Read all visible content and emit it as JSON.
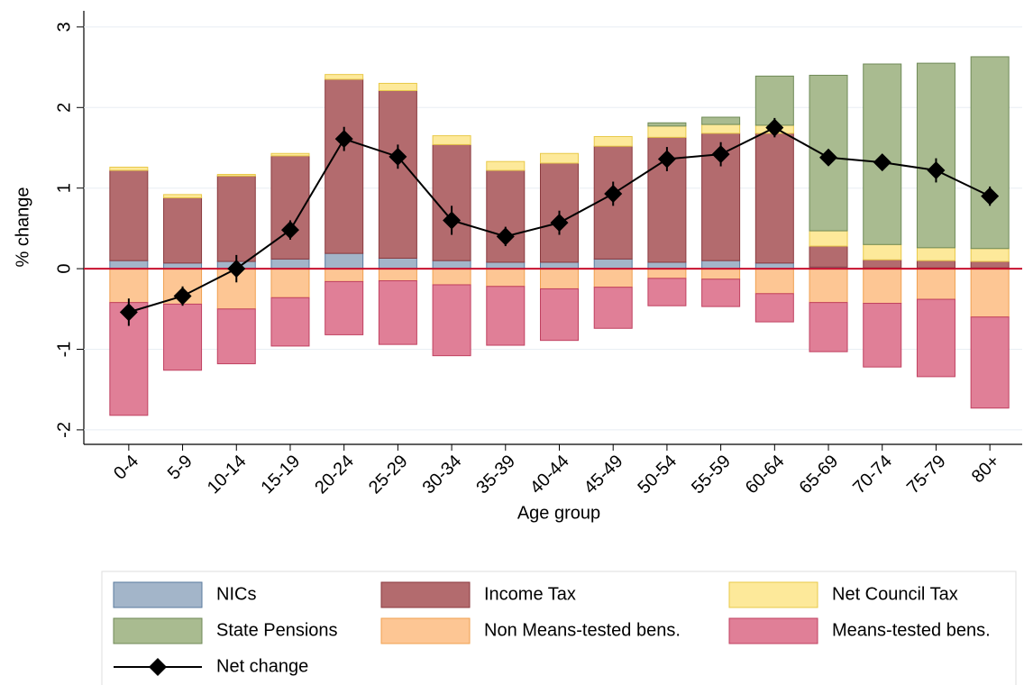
{
  "chart_data": {
    "type": "bar",
    "stacked": true,
    "xlabel": "Age group",
    "ylabel": "% change",
    "categories": [
      "0-4",
      "5-9",
      "10-14",
      "15-19",
      "20-24",
      "25-29",
      "30-34",
      "35-39",
      "40-44",
      "45-49",
      "50-54",
      "55-59",
      "60-64",
      "65-69",
      "70-74",
      "75-79",
      "80+"
    ],
    "ylim": [
      -2.18,
      3.2
    ],
    "yticks": [
      -2,
      -1,
      0,
      1,
      2,
      3
    ],
    "zero_line_color": "#c8102e",
    "series": [
      {
        "name": "NICs",
        "color": "#a3b5c9",
        "edgecolor": "#5a7a9e",
        "values": [
          0.1,
          0.07,
          0.09,
          0.12,
          0.19,
          0.13,
          0.1,
          0.08,
          0.08,
          0.12,
          0.08,
          0.1,
          0.07,
          0.02,
          0.01,
          0.01,
          0.01
        ]
      },
      {
        "name": "Income Tax",
        "color": "#b36b6e",
        "edgecolor": "#8b3a3e",
        "values": [
          1.12,
          0.81,
          1.06,
          1.28,
          2.16,
          2.08,
          1.44,
          1.14,
          1.23,
          1.4,
          1.55,
          1.58,
          1.61,
          0.26,
          0.1,
          0.09,
          0.08
        ]
      },
      {
        "name": "Net Council Tax",
        "color": "#fde99a",
        "edgecolor": "#e8c94a",
        "values": [
          0.04,
          0.04,
          0.02,
          0.03,
          0.06,
          0.09,
          0.11,
          0.11,
          0.12,
          0.12,
          0.14,
          0.11,
          0.1,
          0.19,
          0.19,
          0.16,
          0.16
        ]
      },
      {
        "name": "State Pensions",
        "color": "#a9bb90",
        "edgecolor": "#6f8a57",
        "values": [
          0,
          0,
          0,
          0,
          0,
          0,
          0,
          0,
          0,
          0,
          0.04,
          0.09,
          0.61,
          1.93,
          2.24,
          2.29,
          2.38
        ]
      },
      {
        "name": "Non Means-tested bens.",
        "color": "#fdc694",
        "edgecolor": "#f0a050",
        "values": [
          -0.42,
          -0.44,
          -0.5,
          -0.36,
          -0.16,
          -0.15,
          -0.2,
          -0.22,
          -0.25,
          -0.23,
          -0.12,
          -0.13,
          -0.31,
          -0.42,
          -0.43,
          -0.38,
          -0.6
        ]
      },
      {
        "name": "Means-tested bens.",
        "color": "#e07f97",
        "edgecolor": "#c04060",
        "values": [
          -1.4,
          -0.82,
          -0.68,
          -0.6,
          -0.66,
          -0.79,
          -0.88,
          -0.73,
          -0.64,
          -0.51,
          -0.34,
          -0.34,
          -0.35,
          -0.61,
          -0.79,
          -0.96,
          -1.13
        ]
      },
      {
        "name": "Net change",
        "type": "line",
        "color": "#000000",
        "values": [
          -0.54,
          -0.34,
          0.0,
          0.48,
          1.61,
          1.39,
          0.6,
          0.4,
          0.57,
          0.93,
          1.36,
          1.42,
          1.75,
          1.38,
          1.32,
          1.22,
          0.9
        ],
        "errors": [
          0.17,
          0.12,
          0.17,
          0.12,
          0.15,
          0.15,
          0.18,
          0.12,
          0.15,
          0.15,
          0.15,
          0.15,
          0.12,
          0.1,
          0.1,
          0.15,
          0.12
        ]
      }
    ]
  }
}
